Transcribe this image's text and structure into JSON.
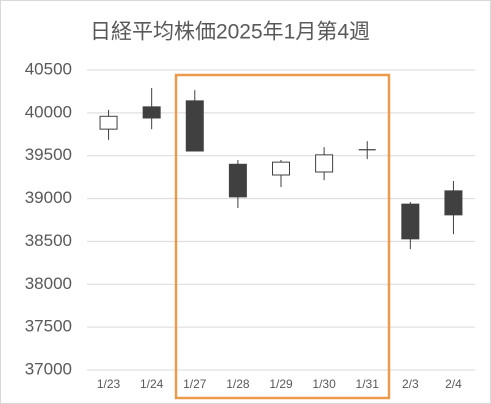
{
  "chart_data": {
    "type": "candlestick",
    "title": "日経平均株価2025年1月第4週",
    "categories": [
      "1/23",
      "1/24",
      "1/27",
      "1/28",
      "1/29",
      "1/30",
      "1/31",
      "2/3",
      "2/4"
    ],
    "open": [
      39810,
      40070,
      40140,
      39400,
      39275,
      39310,
      39570,
      38935,
      39090
    ],
    "high": [
      40035,
      40290,
      40265,
      39450,
      39450,
      39600,
      39670,
      38960,
      39205
    ],
    "low": [
      39685,
      39810,
      39555,
      38890,
      39135,
      39215,
      39460,
      38410,
      38585
    ],
    "close": [
      39960,
      39940,
      39555,
      39020,
      39425,
      39510,
      39570,
      38530,
      38810
    ],
    "up_color": "#ffffff",
    "down_color": "#404040",
    "edge_color": "#404040",
    "ylim": [
      37000,
      40500
    ],
    "yticks": [
      37000,
      37500,
      38000,
      38500,
      39000,
      39500,
      40000,
      40500
    ],
    "grid": true
  }
}
